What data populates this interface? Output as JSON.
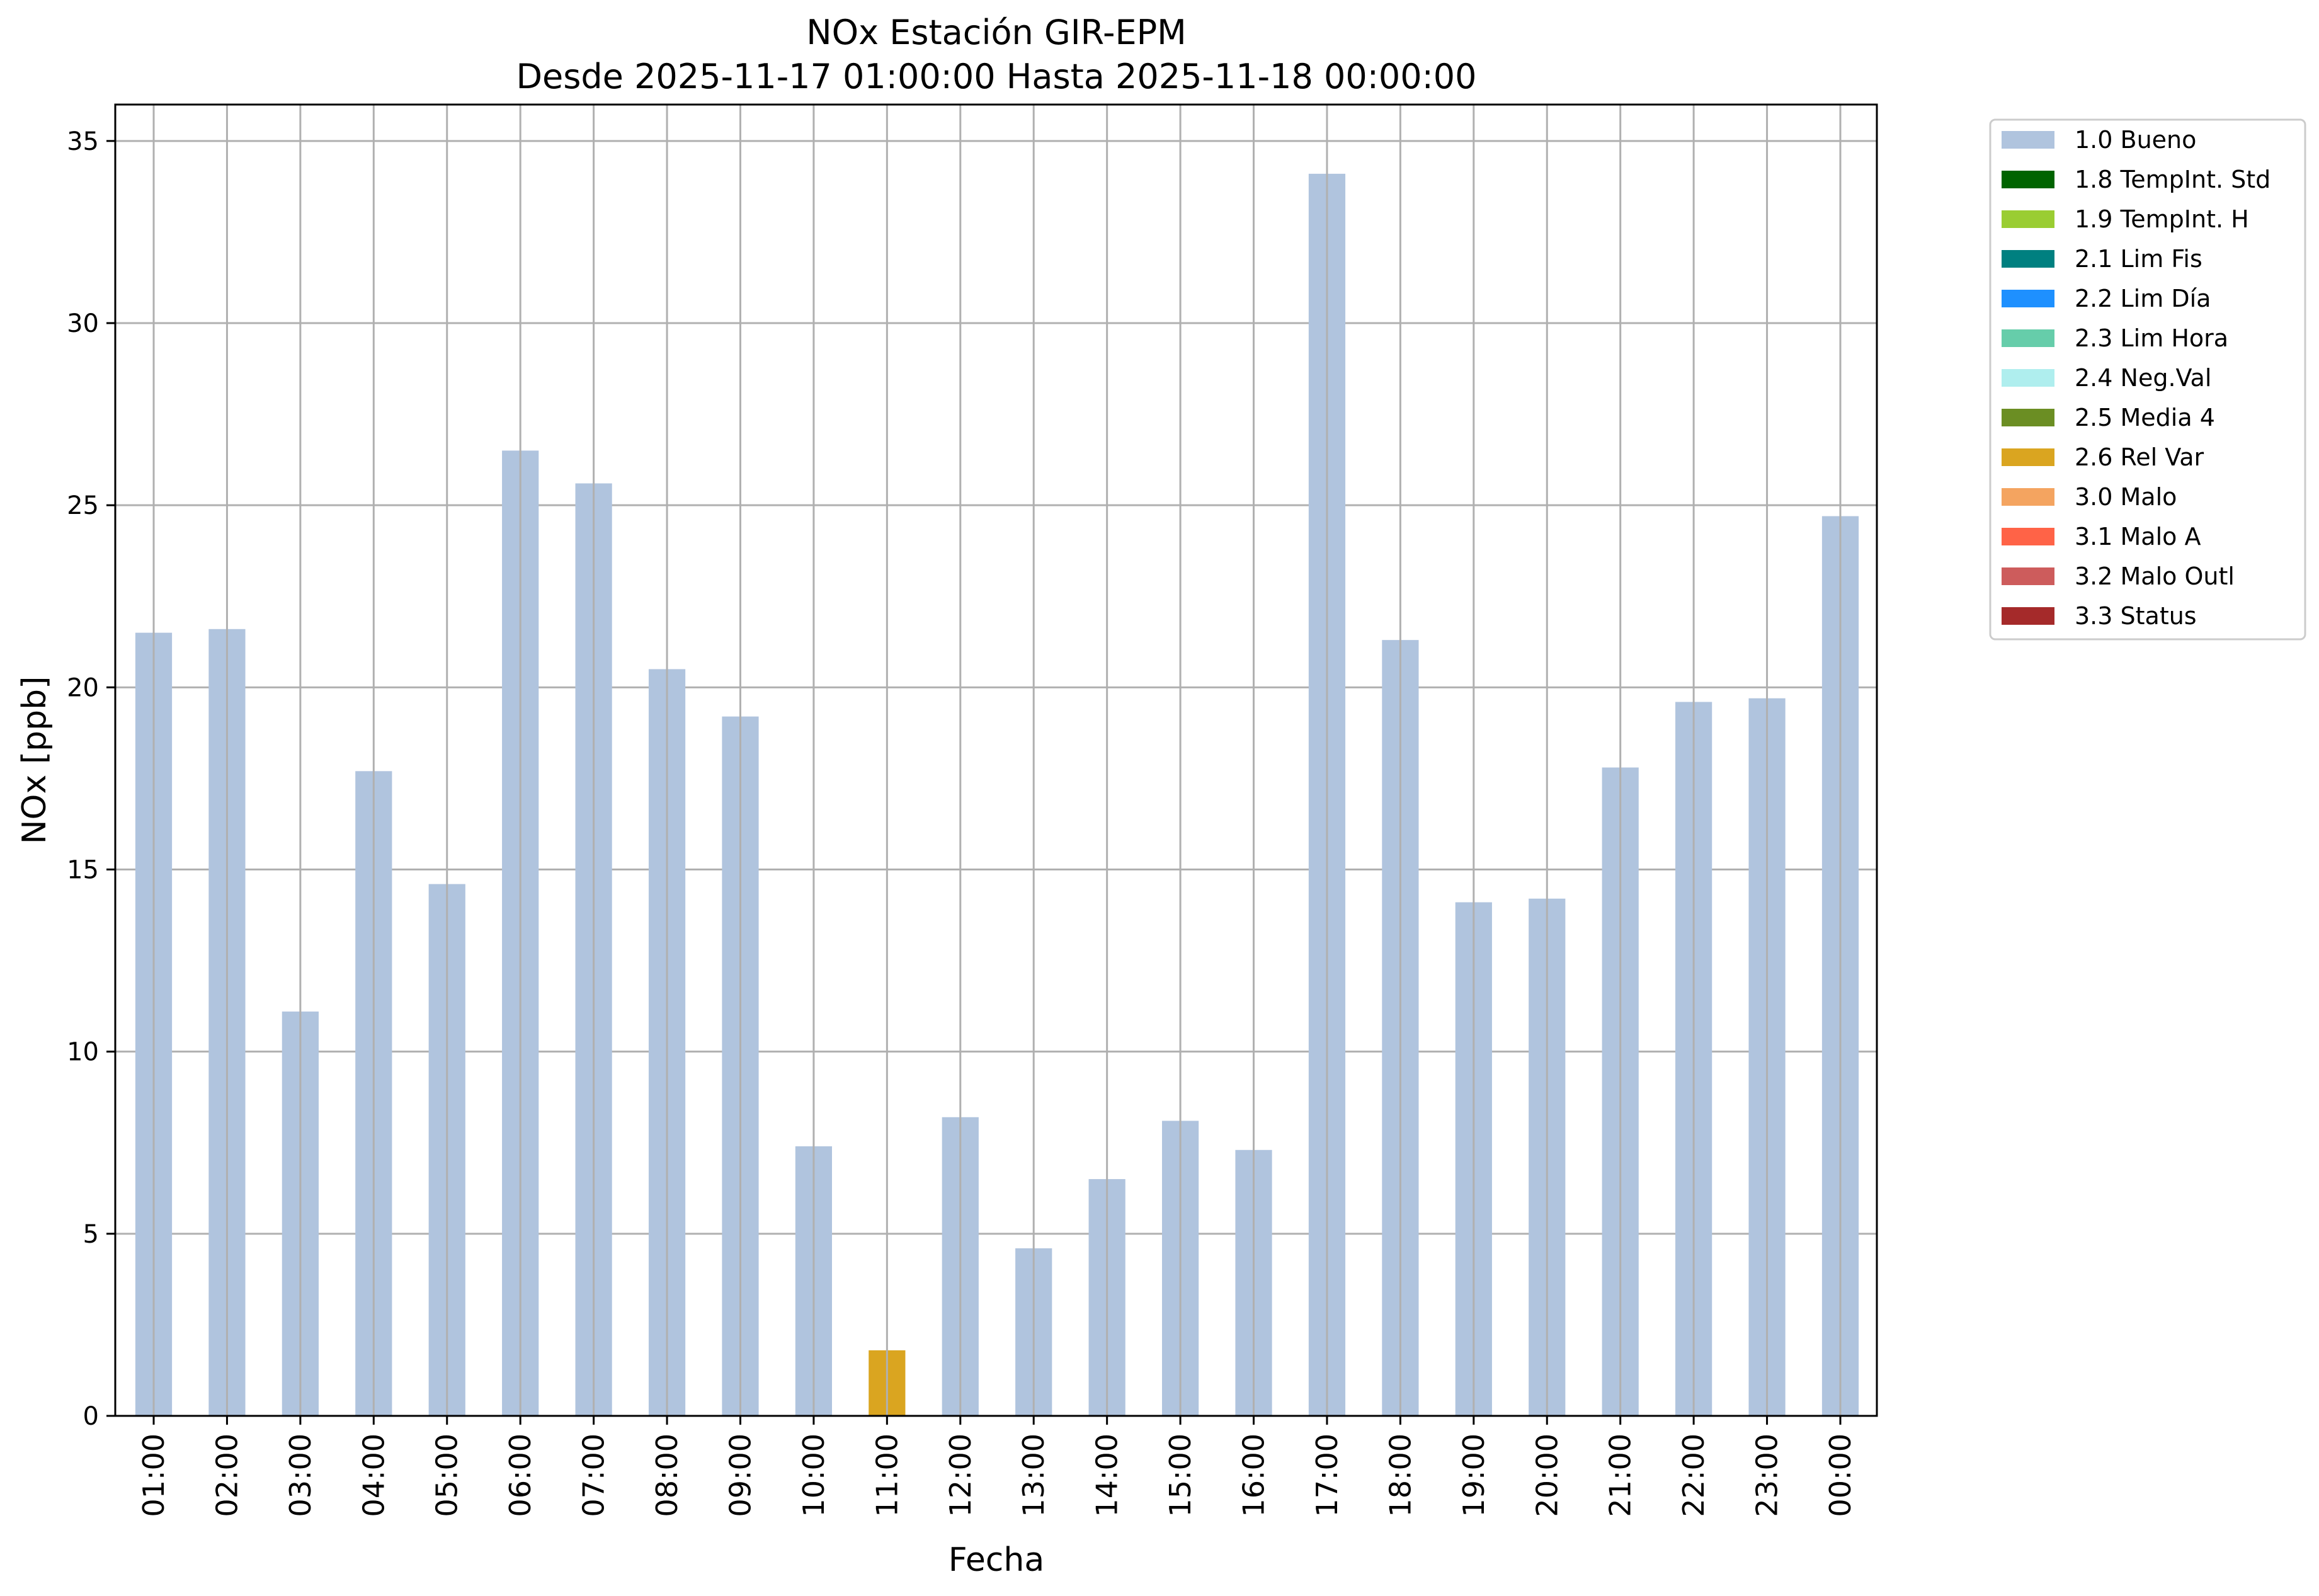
{
  "chart_data": {
    "type": "bar",
    "title": "NOx Estación GIR-EPM",
    "subtitle": "Desde 2025-11-17 01:00:00 Hasta 2025-11-18 00:00:00",
    "xlabel": "Fecha",
    "ylabel": "NOx [ppb]",
    "ylim": [
      0,
      36
    ],
    "yticks": [
      0,
      5,
      10,
      15,
      20,
      25,
      30,
      35
    ],
    "grid": true,
    "legend_position": "outside-top-right",
    "stacked": true,
    "categories": [
      "01:00",
      "02:00",
      "03:00",
      "04:00",
      "05:00",
      "06:00",
      "07:00",
      "08:00",
      "09:00",
      "10:00",
      "11:00",
      "12:00",
      "13:00",
      "14:00",
      "15:00",
      "16:00",
      "17:00",
      "18:00",
      "19:00",
      "20:00",
      "21:00",
      "22:00",
      "23:00",
      "00:00"
    ],
    "series": [
      {
        "name": "1.0 Bueno",
        "color": "#b0c4de",
        "values": [
          21.5,
          21.6,
          11.1,
          17.7,
          14.6,
          26.5,
          25.6,
          20.5,
          19.2,
          7.4,
          0,
          8.2,
          4.6,
          6.5,
          8.1,
          7.3,
          34.1,
          21.3,
          14.1,
          14.2,
          17.8,
          19.6,
          19.7,
          24.7
        ]
      },
      {
        "name": "1.8 TempInt. Std",
        "color": "#006400",
        "values": [
          0,
          0,
          0,
          0,
          0,
          0,
          0,
          0,
          0,
          0,
          0,
          0,
          0,
          0,
          0,
          0,
          0,
          0,
          0,
          0,
          0,
          0,
          0,
          0
        ]
      },
      {
        "name": "1.9 TempInt. H",
        "color": "#9acd32",
        "values": [
          0,
          0,
          0,
          0,
          0,
          0,
          0,
          0,
          0,
          0,
          0,
          0,
          0,
          0,
          0,
          0,
          0,
          0,
          0,
          0,
          0,
          0,
          0,
          0
        ]
      },
      {
        "name": "2.1 Lim Fis",
        "color": "#008080",
        "values": [
          0,
          0,
          0,
          0,
          0,
          0,
          0,
          0,
          0,
          0,
          0,
          0,
          0,
          0,
          0,
          0,
          0,
          0,
          0,
          0,
          0,
          0,
          0,
          0
        ]
      },
      {
        "name": "2.2 Lim Día",
        "color": "#1e90ff",
        "values": [
          0,
          0,
          0,
          0,
          0,
          0,
          0,
          0,
          0,
          0,
          0,
          0,
          0,
          0,
          0,
          0,
          0,
          0,
          0,
          0,
          0,
          0,
          0,
          0
        ]
      },
      {
        "name": "2.3 Lim Hora",
        "color": "#66cdaa",
        "values": [
          0,
          0,
          0,
          0,
          0,
          0,
          0,
          0,
          0,
          0,
          0,
          0,
          0,
          0,
          0,
          0,
          0,
          0,
          0,
          0,
          0,
          0,
          0,
          0
        ]
      },
      {
        "name": "2.4 Neg.Val",
        "color": "#afeeee",
        "values": [
          0,
          0,
          0,
          0,
          0,
          0,
          0,
          0,
          0,
          0,
          0,
          0,
          0,
          0,
          0,
          0,
          0,
          0,
          0,
          0,
          0,
          0,
          0,
          0
        ]
      },
      {
        "name": "2.5 Media 4",
        "color": "#6b8e23",
        "values": [
          0,
          0,
          0,
          0,
          0,
          0,
          0,
          0,
          0,
          0,
          0,
          0,
          0,
          0,
          0,
          0,
          0,
          0,
          0,
          0,
          0,
          0,
          0,
          0
        ]
      },
      {
        "name": "2.6 Rel Var",
        "color": "#daa520",
        "values": [
          0,
          0,
          0,
          0,
          0,
          0,
          0,
          0,
          0,
          0,
          1.8,
          0,
          0,
          0,
          0,
          0,
          0,
          0,
          0,
          0,
          0,
          0,
          0,
          0
        ]
      },
      {
        "name": "3.0 Malo",
        "color": "#f4a460",
        "values": [
          0,
          0,
          0,
          0,
          0,
          0,
          0,
          0,
          0,
          0,
          0,
          0,
          0,
          0,
          0,
          0,
          0,
          0,
          0,
          0,
          0,
          0,
          0,
          0
        ]
      },
      {
        "name": "3.1 Malo A",
        "color": "#ff6347",
        "values": [
          0,
          0,
          0,
          0,
          0,
          0,
          0,
          0,
          0,
          0,
          0,
          0,
          0,
          0,
          0,
          0,
          0,
          0,
          0,
          0,
          0,
          0,
          0,
          0
        ]
      },
      {
        "name": "3.2 Malo Outl",
        "color": "#cd5c5c",
        "values": [
          0,
          0,
          0,
          0,
          0,
          0,
          0,
          0,
          0,
          0,
          0,
          0,
          0,
          0,
          0,
          0,
          0,
          0,
          0,
          0,
          0,
          0,
          0,
          0
        ]
      },
      {
        "name": "3.3 Status",
        "color": "#a52a2a",
        "values": [
          0,
          0,
          0,
          0,
          0,
          0,
          0,
          0,
          0,
          0,
          0,
          0,
          0,
          0,
          0,
          0,
          0,
          0,
          0,
          0,
          0,
          0,
          0,
          0
        ]
      }
    ]
  }
}
